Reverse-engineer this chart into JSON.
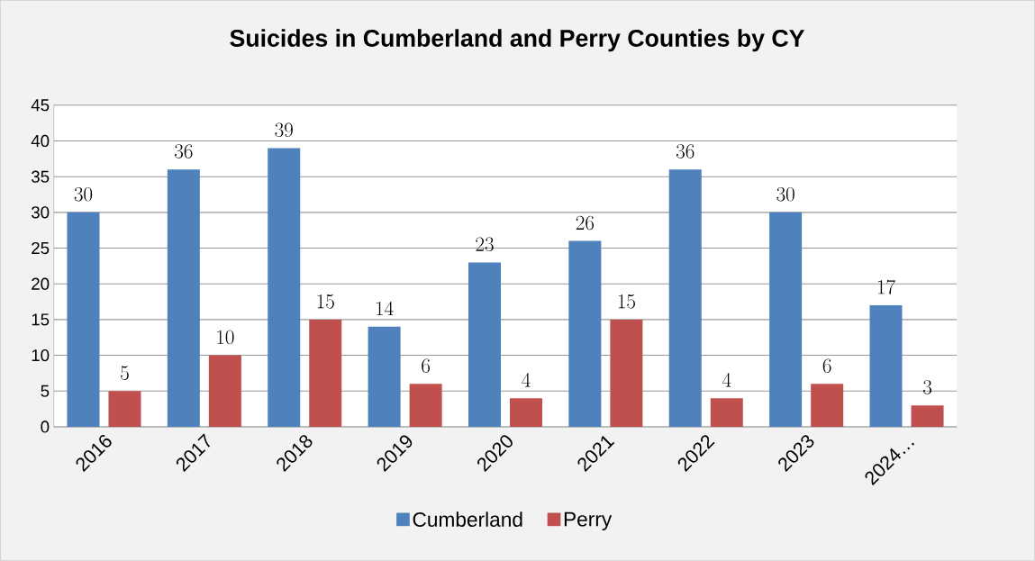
{
  "chart_data": {
    "type": "bar",
    "title": "Suicides in Cumberland and Perry Counties by CY",
    "categories": [
      "2016",
      "2017",
      "2018",
      "2019",
      "2020",
      "2021",
      "2022",
      "2023",
      "2024…"
    ],
    "series": [
      {
        "name": "Cumberland",
        "color": "#4f81bd",
        "values": [
          30,
          36,
          39,
          14,
          23,
          26,
          36,
          30,
          17
        ]
      },
      {
        "name": "Perry",
        "color": "#c0504d",
        "values": [
          5,
          10,
          15,
          6,
          4,
          15,
          4,
          6,
          3
        ]
      }
    ],
    "ylim": [
      0,
      45
    ],
    "yticks": [
      0,
      5,
      10,
      15,
      20,
      25,
      30,
      35,
      40,
      45
    ],
    "grid": "y",
    "legend": "bottom",
    "data_labels": true
  }
}
